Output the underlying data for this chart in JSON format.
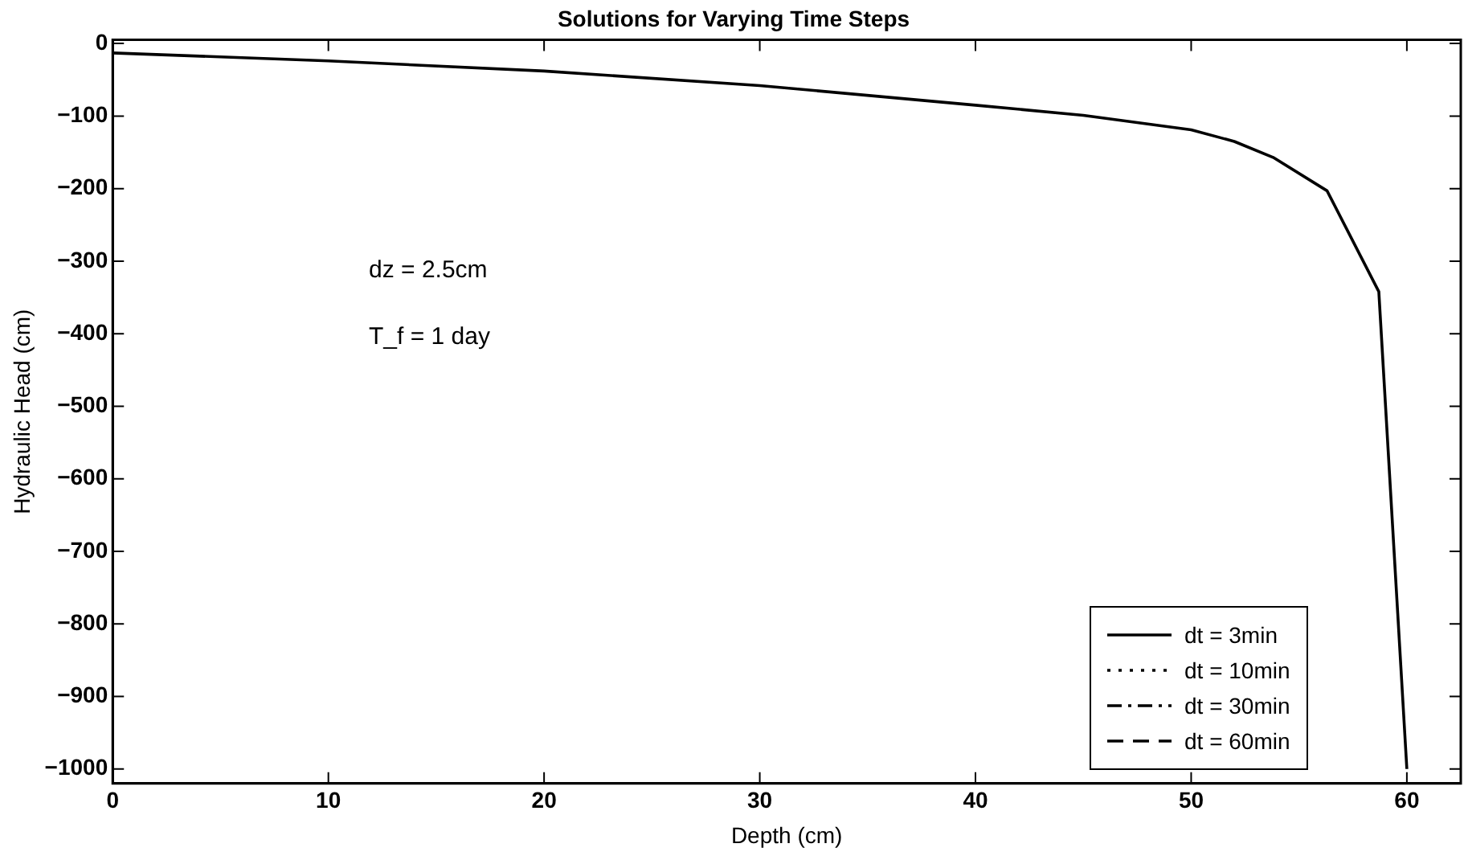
{
  "chart_data": {
    "type": "line",
    "title": "Solutions for Varying Time Steps",
    "xlabel": "Depth (cm)",
    "ylabel": "Hydraulic Head (cm)",
    "annotations": [
      "dz = 2.5cm",
      "T_f = 1 day"
    ],
    "x": [
      0,
      10,
      20,
      30,
      40,
      45,
      50,
      52,
      53.8,
      56.3,
      58.7,
      60
    ],
    "series": [
      {
        "name": "dt = 3min",
        "color": "#000000",
        "line_style": "solid",
        "values": [
          -13,
          -24,
          -38,
          -58,
          -85,
          -99,
          -119,
          -135,
          -157,
          -203,
          -342,
          -1000
        ]
      },
      {
        "name": "dt = 10min",
        "color": "#000000",
        "line_style": "dotted",
        "values": [
          null,
          null,
          null,
          null,
          null,
          null,
          null,
          null,
          null,
          null,
          null,
          null
        ]
      },
      {
        "name": "dt = 30min",
        "color": "#000000",
        "line_style": "dashdot",
        "values": [
          null,
          null,
          null,
          null,
          null,
          null,
          null,
          null,
          null,
          null,
          null,
          null
        ]
      },
      {
        "name": "dt = 60min",
        "color": "#000000",
        "line_style": "dashed",
        "values": [
          null,
          null,
          null,
          null,
          null,
          null,
          null,
          null,
          null,
          null,
          null,
          null
        ]
      }
    ],
    "xlim": [
      0,
      62.5
    ],
    "xticks": [
      0,
      10,
      20,
      30,
      40,
      50,
      60
    ],
    "ylim": [
      -1020,
      5
    ],
    "yticks": [
      0,
      -100,
      -200,
      -300,
      -400,
      -500,
      -600,
      -700,
      -800,
      -900,
      -1000
    ],
    "grid": false,
    "legend": "bottom right",
    "marker": "none"
  }
}
